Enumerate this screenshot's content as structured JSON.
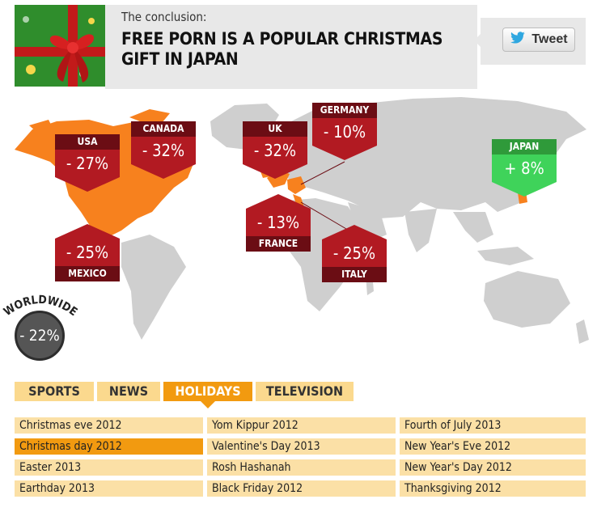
{
  "header": {
    "subtitle": "The conclusion:",
    "title": "FREE PORN IS A POPULAR CHRISTMAS GIFT IN JAPAN",
    "tweet_label": "Tweet"
  },
  "callouts": {
    "usa": {
      "label": "USA",
      "value": "- 27%"
    },
    "canada": {
      "label": "CANADA",
      "value": "- 32%"
    },
    "uk": {
      "label": "UK",
      "value": "- 32%"
    },
    "germany": {
      "label": "GERMANY",
      "value": "- 10%"
    },
    "japan": {
      "label": "JAPAN",
      "value": "+ 8%"
    },
    "mexico": {
      "label": "MEXICO",
      "value": "- 25%"
    },
    "france": {
      "label": "FRANCE",
      "value": "- 13%"
    },
    "italy": {
      "label": "ITALY",
      "value": "- 25%"
    }
  },
  "worldwide": {
    "label": "WORLDWIDE",
    "value": "- 22%"
  },
  "tabs": [
    {
      "label": "SPORTS"
    },
    {
      "label": "NEWS"
    },
    {
      "label": "HOLIDAYS"
    },
    {
      "label": "TELEVISION"
    }
  ],
  "holidays": {
    "col1": [
      "Christmas eve 2012",
      "Christmas day 2012",
      "Easter 2013",
      "Earthday 2013"
    ],
    "col2": [
      "Yom Kippur 2012",
      "Valentine's Day 2013",
      "Rosh Hashanah",
      "Black Friday 2012"
    ],
    "col3": [
      "Fourth of July 2013",
      "New Year's Eve 2012",
      "New Year's Day 2012",
      "Thanksgiving 2012"
    ]
  },
  "colors": {
    "decline": "#b21a22",
    "increase": "#3fd35a",
    "active": "#f29a10",
    "inactive": "#fbd98e"
  }
}
